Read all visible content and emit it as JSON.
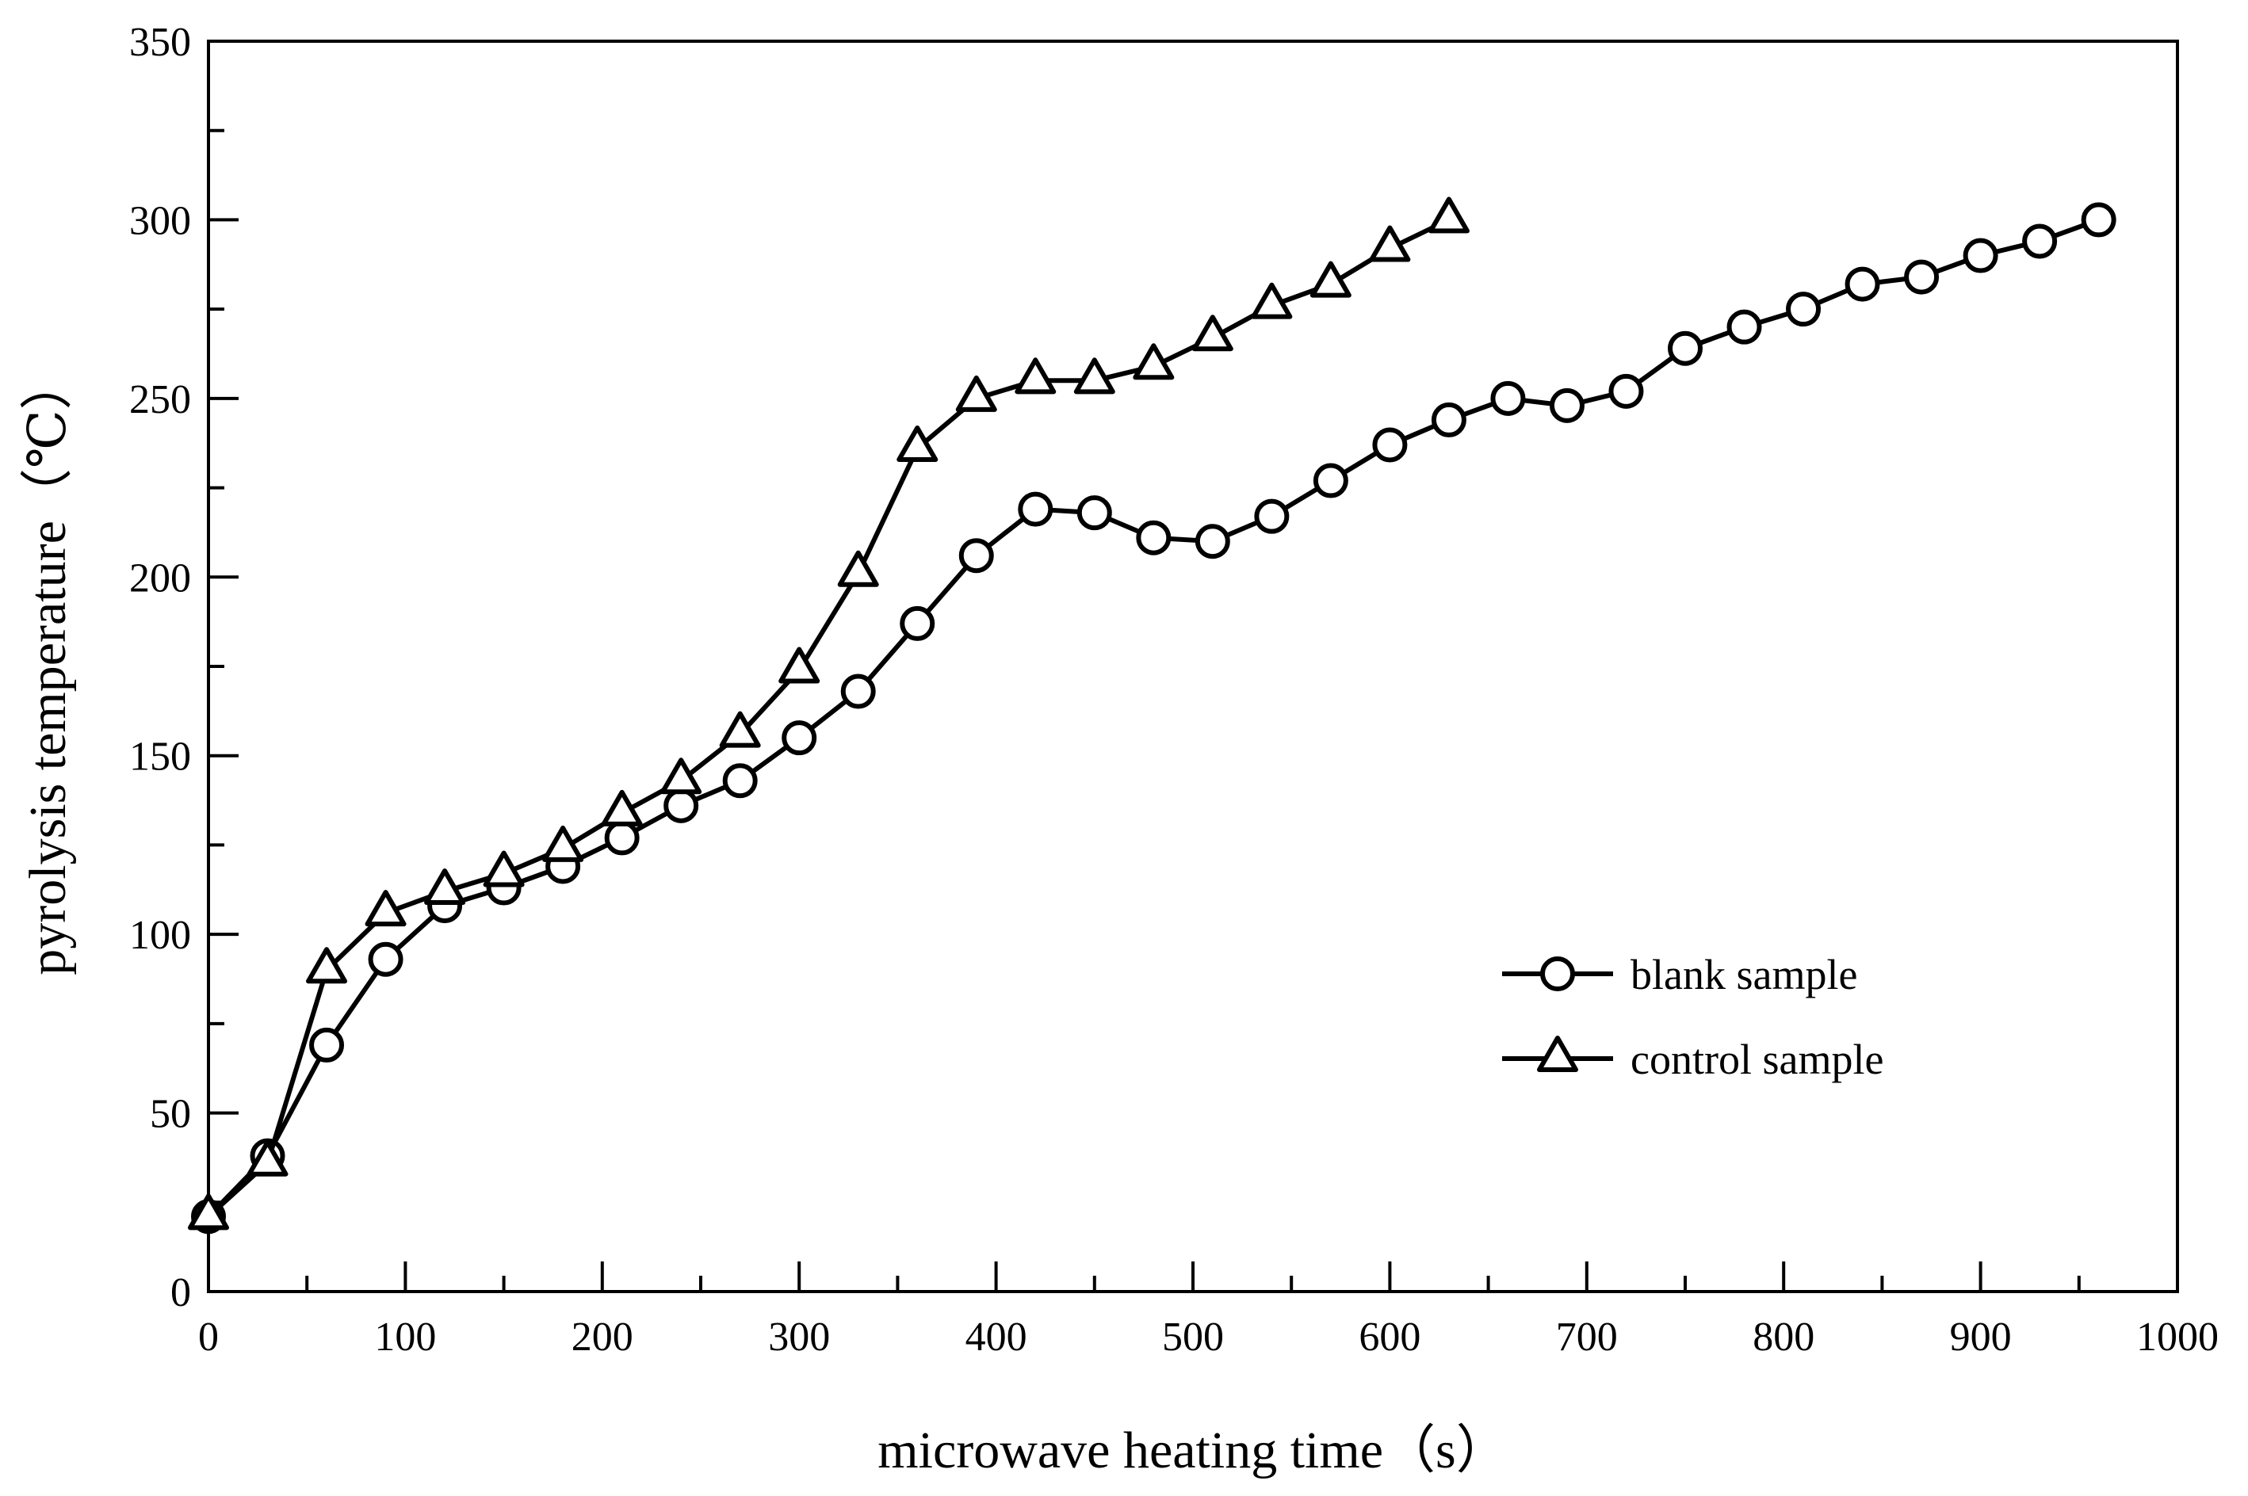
{
  "chart_data": {
    "type": "line",
    "title": "",
    "xlabel": "microwave heating time（s）",
    "ylabel": "pyrolysis temperature（℃）",
    "xlim": [
      0,
      1000
    ],
    "ylim": [
      0,
      350
    ],
    "xticks": [
      0,
      100,
      200,
      300,
      400,
      500,
      600,
      700,
      800,
      900,
      1000
    ],
    "yticks": [
      0,
      50,
      100,
      150,
      200,
      250,
      300,
      350
    ],
    "xtick_labels": [
      "0",
      "100",
      "200",
      "300",
      "400",
      "500",
      "600",
      "700",
      "800",
      "900",
      "1000"
    ],
    "ytick_labels": [
      "0",
      "50",
      "100",
      "150",
      "200",
      "250",
      "300",
      "350"
    ],
    "grid": false,
    "legend_position": "bottom-right",
    "series": [
      {
        "name": "blank sample",
        "marker": "circle",
        "color": "#000000",
        "x": [
          0,
          30,
          60,
          90,
          120,
          150,
          180,
          210,
          240,
          270,
          300,
          330,
          360,
          390,
          420,
          450,
          480,
          510,
          540,
          570,
          600,
          630,
          660,
          690,
          720,
          750,
          780,
          810,
          840,
          870,
          900,
          930,
          960
        ],
        "y": [
          21,
          38,
          69,
          93,
          108,
          113,
          119,
          127,
          136,
          143,
          155,
          168,
          187,
          206,
          219,
          218,
          211,
          210,
          217,
          227,
          237,
          244,
          250,
          248,
          252,
          264,
          270,
          275,
          282,
          284,
          290,
          294,
          300
        ]
      },
      {
        "name": "control sample",
        "marker": "triangle",
        "color": "#000000",
        "x": [
          0,
          30,
          60,
          90,
          120,
          150,
          180,
          210,
          240,
          270,
          300,
          330,
          360,
          390,
          420,
          450,
          480,
          510,
          540,
          570,
          600,
          630
        ],
        "y": [
          21,
          36,
          90,
          106,
          112,
          117,
          124,
          134,
          143,
          156,
          174,
          201,
          236,
          250,
          255,
          255,
          259,
          267,
          276,
          282,
          292,
          300
        ]
      }
    ]
  }
}
